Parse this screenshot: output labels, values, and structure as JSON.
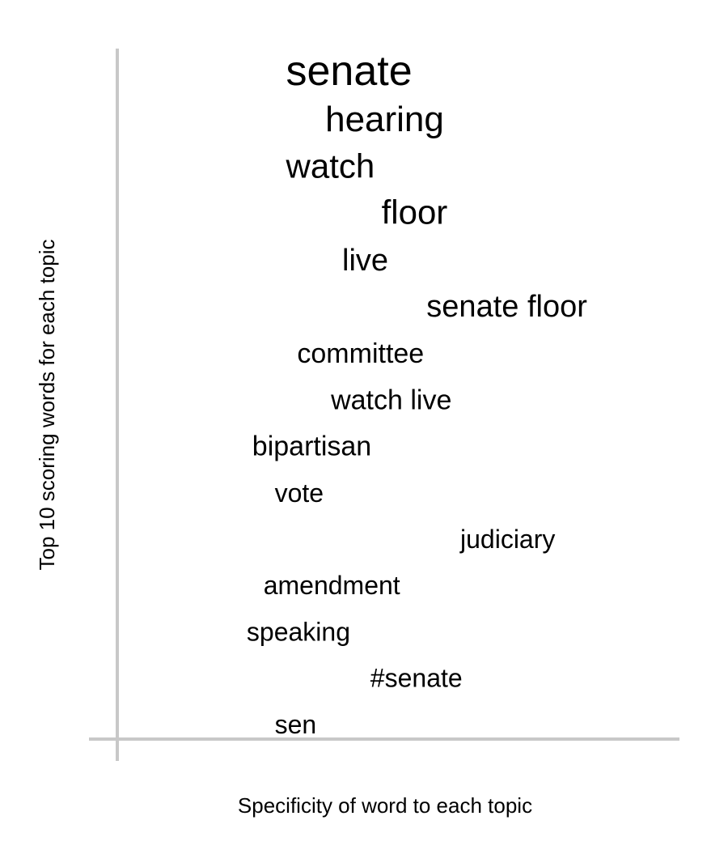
{
  "chart_data": {
    "type": "scatter",
    "xlabel": "Specificity of word to each topic",
    "ylabel": "Top 10 scoring words for each topic",
    "grid": false,
    "colors": {
      "axis": "#c8c8c8",
      "text": "#000000"
    },
    "words": [
      {
        "label": "senate",
        "specificity": 0.3,
        "rank": 1
      },
      {
        "label": "hearing",
        "specificity": 0.37,
        "rank": 2
      },
      {
        "label": "watch",
        "specificity": 0.3,
        "rank": 3
      },
      {
        "label": "floor",
        "specificity": 0.47,
        "rank": 4
      },
      {
        "label": "live",
        "specificity": 0.4,
        "rank": 5
      },
      {
        "label": "senate floor",
        "specificity": 0.55,
        "rank": 6
      },
      {
        "label": "committee",
        "specificity": 0.32,
        "rank": 7
      },
      {
        "label": "watch live",
        "specificity": 0.38,
        "rank": 8
      },
      {
        "label": "bipartisan",
        "specificity": 0.24,
        "rank": 9
      },
      {
        "label": "vote",
        "specificity": 0.28,
        "rank": 10
      },
      {
        "label": "judiciary",
        "specificity": 0.61,
        "rank": 11
      },
      {
        "label": "amendment",
        "specificity": 0.26,
        "rank": 12
      },
      {
        "label": "speaking",
        "specificity": 0.23,
        "rank": 13
      },
      {
        "label": "#senate",
        "specificity": 0.45,
        "rank": 14
      },
      {
        "label": "sen",
        "specificity": 0.28,
        "rank": 15
      }
    ]
  }
}
